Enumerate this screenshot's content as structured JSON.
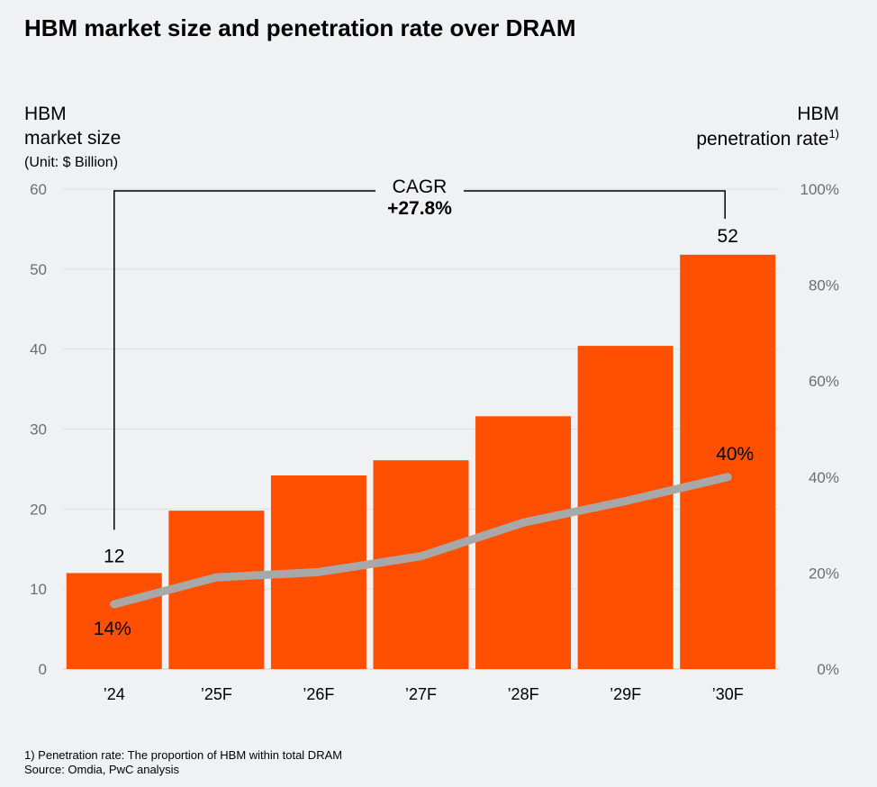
{
  "chart_data": {
    "type": "bar",
    "title": "HBM market size and penetration rate over DRAM",
    "ylabel_left": [
      "HBM",
      "market size",
      "(Unit: $ Billion)"
    ],
    "ylabel_right": {
      "line1": "HBM",
      "line2": "penetration rate",
      "sup": "1)"
    },
    "categories": [
      "’24",
      "’25F",
      "’26F",
      "’27F",
      "’28F",
      "’29F",
      "’30F"
    ],
    "series": [
      {
        "type": "bar",
        "axis": "left",
        "values": [
          12,
          19.8,
          24.2,
          26.1,
          31.6,
          40.4,
          51.8
        ],
        "color": "#fe5000"
      },
      {
        "type": "line",
        "axis": "right",
        "values": [
          13.5,
          19.1,
          20.2,
          23.5,
          30.5,
          35,
          40
        ],
        "color": "#a8a8a8"
      }
    ],
    "ylim_left": [
      0,
      60
    ],
    "yticks_left": [
      0,
      10,
      20,
      30,
      40,
      50,
      60
    ],
    "ylim_right": [
      0,
      100
    ],
    "yticks_right": [
      "0%",
      "20%",
      "40%",
      "60%",
      "80%",
      "100%"
    ],
    "yticks_right_values": [
      0,
      20,
      40,
      60,
      80,
      100
    ],
    "data_labels": {
      "bar_first": "12",
      "bar_last": "52",
      "line_first": "14%",
      "line_last": "40%"
    },
    "cagr": {
      "label": "CAGR",
      "value": "+27.8%"
    },
    "grid": true,
    "legend": "none"
  },
  "footnotes": [
    "1) Penetration rate: The proportion of HBM within total DRAM",
    "Source: Omdia, PwC analysis"
  ],
  "colors": {
    "bar": "#fe5000",
    "line": "#a8a8a8",
    "background": "#f0f1f3",
    "tick": "#6e6e6e",
    "grid": "#dcdde0"
  }
}
